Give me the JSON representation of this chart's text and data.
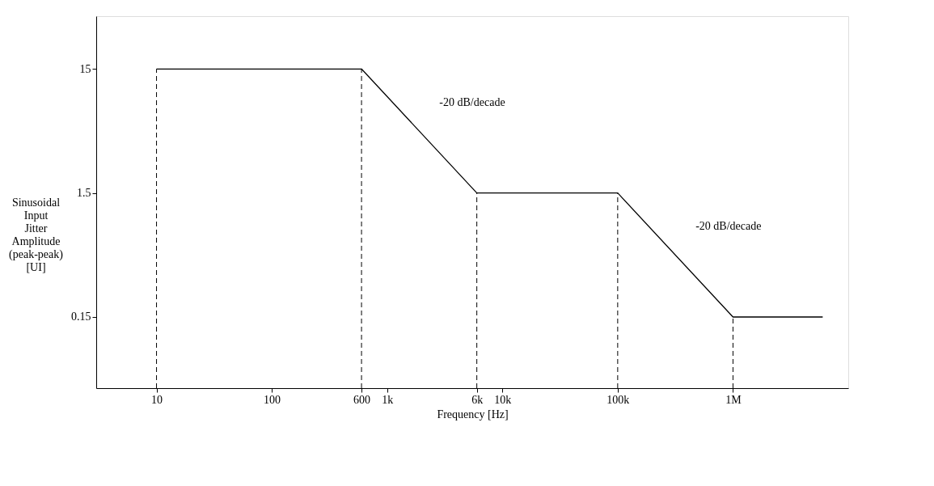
{
  "chart_data": {
    "type": "line",
    "xlabel": "Frequency [Hz]",
    "ylabel": "Sinusoidal\nInput\nJitter\nAmplitude\n(peak-peak)\n[UI]",
    "log": "xy",
    "grid": false,
    "legend": false,
    "marker": "none",
    "line_style": "solid",
    "x": [
      10,
      600,
      6000,
      100000,
      1000000,
      6000000
    ],
    "series": [
      {
        "color": "#000000",
        "values": [
          15,
          15,
          1.5,
          1.5,
          0.15,
          0.15
        ]
      }
    ],
    "xlim": [
      3,
      10000000
    ],
    "ylim": [
      0.04,
      40
    ],
    "xticks": [
      10,
      100,
      600,
      {
        "value": 1000,
        "label": "1k"
      },
      {
        "value": 6000,
        "label": "6k"
      },
      {
        "value": 10000,
        "label": "10k"
      },
      {
        "value": 100000,
        "label": "100k"
      },
      {
        "value": 1000000,
        "label": "1M"
      }
    ],
    "yticks": [
      0.15,
      1.5,
      15
    ],
    "ref_lines": [
      {
        "axis": "x",
        "value": 10,
        "line_style": "dashed",
        "color": "#000000"
      },
      {
        "axis": "x",
        "value": 600,
        "line_style": "dashed",
        "color": "#000000"
      },
      {
        "axis": "x",
        "value": 6000,
        "line_style": "dashed",
        "color": "#000000"
      },
      {
        "axis": "x",
        "value": 100000,
        "line_style": "dashed",
        "color": "#000000"
      },
      {
        "axis": "x",
        "value": 1000000,
        "line_style": "dashed",
        "color": "#000000"
      }
    ],
    "annotations": [
      "-20 dB/decade",
      "-20 dB/decade"
    ]
  }
}
